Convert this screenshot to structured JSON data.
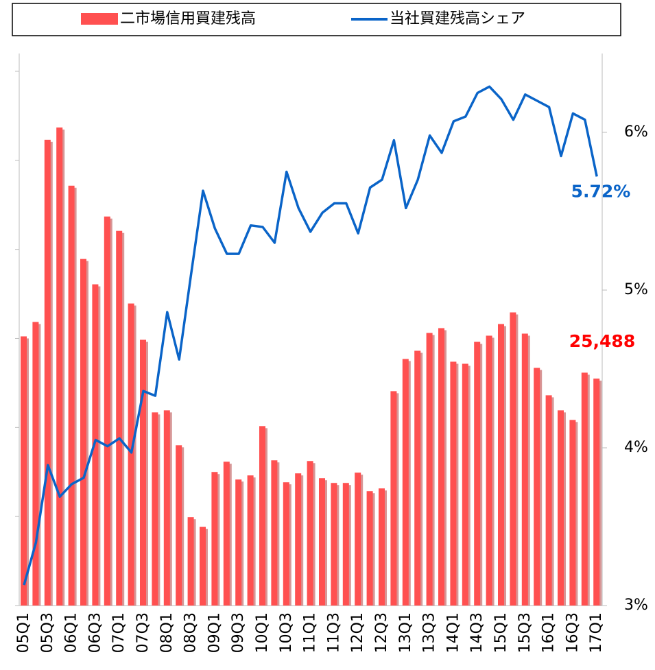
{
  "chart_data": {
    "type": "bar_line",
    "legend": "top",
    "categories": [
      "05Q1",
      null,
      "05Q3",
      null,
      "06Q1",
      null,
      "06Q3",
      null,
      "07Q1",
      null,
      "07Q3",
      null,
      "08Q1",
      null,
      "08Q3",
      null,
      "09Q1",
      null,
      "09Q3",
      null,
      "10Q1",
      null,
      "10Q3",
      null,
      "11Q1",
      null,
      "11Q3",
      null,
      "12Q1",
      null,
      "12Q3",
      null,
      "13Q1",
      null,
      "13Q3",
      null,
      "14Q1",
      null,
      "14Q3",
      null,
      "15Q1",
      null,
      "15Q3",
      null,
      "16Q1",
      null,
      "16Q3",
      null,
      "17Q1"
    ],
    "series": [
      {
        "name": "二市場信用買建残高",
        "type": "bar",
        "color": "#ff5050",
        "values": [
          30231,
          31846,
          52308,
          53692,
          47154,
          38923,
          36077,
          43692,
          42077,
          33923,
          29846,
          21692,
          21923,
          18000,
          9923,
          8846,
          15000,
          16154,
          14154,
          14615,
          20154,
          16308,
          13846,
          14846,
          16231,
          14308,
          13769,
          13769,
          14923,
          12846,
          13154,
          24077,
          27692,
          28615,
          30615,
          31154,
          27385,
          27154,
          29615,
          30308,
          31615,
          32923,
          30538,
          26692,
          23615,
          21923,
          20846,
          26154,
          25488
        ],
        "value_labels": [
          null,
          null,
          null,
          null,
          null,
          null,
          null,
          null,
          null,
          null,
          null,
          null,
          null,
          null,
          null,
          null,
          null,
          null,
          null,
          null,
          null,
          null,
          null,
          null,
          null,
          null,
          null,
          null,
          null,
          null,
          null,
          null,
          null,
          null,
          null,
          null,
          null,
          null,
          null,
          null,
          null,
          null,
          null,
          null,
          null,
          null,
          null,
          null,
          "25,488"
        ]
      },
      {
        "name": "当社買建残高シェア",
        "type": "line",
        "axis": "y2",
        "color": "#0a64c8",
        "values": [
          3.13,
          3.4,
          3.89,
          3.69,
          3.77,
          3.81,
          4.05,
          4.01,
          4.06,
          3.97,
          4.36,
          4.33,
          4.86,
          4.56,
          5.1,
          5.63,
          5.39,
          5.23,
          5.23,
          5.41,
          5.4,
          5.3,
          5.75,
          5.52,
          5.37,
          5.49,
          5.55,
          5.55,
          5.36,
          5.65,
          5.7,
          5.95,
          5.52,
          5.7,
          5.98,
          5.87,
          6.07,
          6.1,
          6.25,
          6.29,
          6.21,
          6.08,
          6.24,
          6.2,
          6.16,
          5.85,
          6.12,
          6.08,
          5.72
        ],
        "value_labels": [
          null,
          null,
          null,
          null,
          null,
          null,
          null,
          null,
          null,
          null,
          null,
          null,
          null,
          null,
          null,
          null,
          null,
          null,
          null,
          null,
          null,
          null,
          null,
          null,
          null,
          null,
          null,
          null,
          null,
          null,
          null,
          null,
          null,
          null,
          null,
          null,
          null,
          null,
          null,
          null,
          null,
          null,
          null,
          null,
          null,
          null,
          null,
          null,
          "5.72%"
        ]
      }
    ],
    "ylim": [
      0,
      62000
    ],
    "yticks": [
      0,
      10000,
      20000,
      30000,
      40000,
      50000,
      60000
    ],
    "y2lim": [
      3,
      6.5
    ],
    "y2ticks": [
      {
        "value": 3,
        "label": "3%"
      },
      {
        "value": 4,
        "label": "4%"
      },
      {
        "value": 5,
        "label": "5%"
      },
      {
        "value": 6,
        "label": "6%"
      }
    ]
  }
}
